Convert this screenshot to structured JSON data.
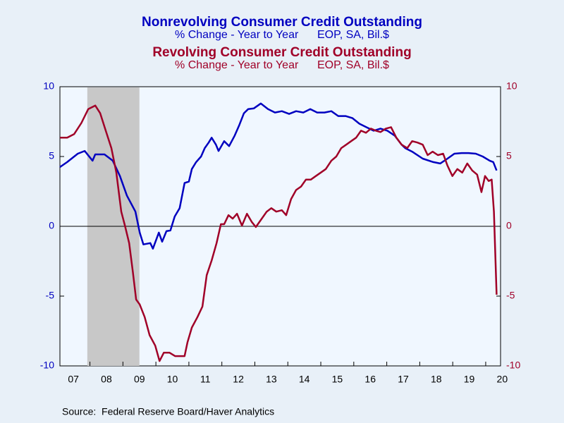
{
  "chart_data": {
    "type": "line",
    "source": "Source:  Federal Reserve Board/Haver Analytics",
    "xlim": [
      2007.09,
      2020.45
    ],
    "xticks": [
      {
        "value": 2007,
        "label": "07"
      },
      {
        "value": 2008,
        "label": "08"
      },
      {
        "value": 2009,
        "label": "09"
      },
      {
        "value": 2010,
        "label": "10"
      },
      {
        "value": 2011,
        "label": "11"
      },
      {
        "value": 2012,
        "label": "12"
      },
      {
        "value": 2013,
        "label": "13"
      },
      {
        "value": 2014,
        "label": "14"
      },
      {
        "value": 2015,
        "label": "15"
      },
      {
        "value": 2016,
        "label": "16"
      },
      {
        "value": 2017,
        "label": "17"
      },
      {
        "value": 2018,
        "label": "18"
      },
      {
        "value": 2019,
        "label": "19"
      },
      {
        "value": 2020,
        "label": "20"
      }
    ],
    "ylim": [
      -10,
      10
    ],
    "yticks": [
      -10,
      -5,
      0,
      5,
      10
    ],
    "y2lim": [
      -10,
      10
    ],
    "y2ticks": [
      -10,
      -5,
      0,
      5,
      10
    ],
    "recession": {
      "start": 2007.92,
      "end": 2009.5,
      "color": "#c8c8c8"
    },
    "series": [
      {
        "name": "Nonrevolving Consumer Credit Outstanding",
        "subtitle": "% Change - Year to Year      EOP, SA, Bil.$",
        "color": "#0000c0",
        "axis": "y",
        "x": [
          2007.09,
          2007.31,
          2007.63,
          2007.84,
          2008.08,
          2008.16,
          2008.44,
          2008.69,
          2008.91,
          2009.12,
          2009.38,
          2009.51,
          2009.62,
          2009.83,
          2009.91,
          2010.09,
          2010.19,
          2010.32,
          2010.44,
          2010.57,
          2010.72,
          2010.87,
          2011.0,
          2011.09,
          2011.22,
          2011.37,
          2011.48,
          2011.6,
          2011.69,
          2011.82,
          2011.9,
          2012.07,
          2012.22,
          2012.39,
          2012.52,
          2012.67,
          2012.8,
          2012.97,
          2013.18,
          2013.4,
          2013.61,
          2013.82,
          2014.04,
          2014.25,
          2014.47,
          2014.68,
          2014.89,
          2015.11,
          2015.32,
          2015.53,
          2015.75,
          2015.96,
          2016.17,
          2016.38,
          2016.6,
          2016.81,
          2017.02,
          2017.24,
          2017.45,
          2017.56,
          2017.77,
          2018.09,
          2018.41,
          2018.62,
          2018.84,
          2019.05,
          2019.27,
          2019.48,
          2019.7,
          2019.91,
          2020.12,
          2020.23,
          2020.33
        ],
        "values": [
          4.24,
          4.6,
          5.2,
          5.4,
          4.7,
          5.15,
          5.15,
          4.7,
          3.6,
          2.2,
          1.05,
          -0.45,
          -1.3,
          -1.2,
          -1.6,
          -0.45,
          -1.1,
          -0.35,
          -0.3,
          0.7,
          1.3,
          3.1,
          3.2,
          4.1,
          4.6,
          5.0,
          5.6,
          6.0,
          6.35,
          5.85,
          5.4,
          6.1,
          5.75,
          6.5,
          7.2,
          8.1,
          8.4,
          8.45,
          8.8,
          8.4,
          8.15,
          8.25,
          8.05,
          8.25,
          8.15,
          8.4,
          8.15,
          8.15,
          8.25,
          7.9,
          7.9,
          7.75,
          7.35,
          7.1,
          6.85,
          7.0,
          6.85,
          6.5,
          5.85,
          5.6,
          5.35,
          4.85,
          4.6,
          4.5,
          4.85,
          5.2,
          5.25,
          5.25,
          5.2,
          5.0,
          4.7,
          4.6,
          4.0
        ]
      },
      {
        "name": "Revolving Consumer Credit Outstanding",
        "subtitle": "% Change - Year to Year      EOP, SA, Bil.$",
        "color": "#a00028",
        "axis": "y2",
        "x": [
          2007.09,
          2007.31,
          2007.52,
          2007.74,
          2007.95,
          2008.16,
          2008.31,
          2008.48,
          2008.65,
          2008.8,
          2008.95,
          2009.06,
          2009.19,
          2009.3,
          2009.4,
          2009.51,
          2009.66,
          2009.81,
          2009.98,
          2010.11,
          2010.24,
          2010.41,
          2010.58,
          2010.75,
          2010.87,
          2010.96,
          2011.09,
          2011.26,
          2011.41,
          2011.54,
          2011.69,
          2011.84,
          2011.97,
          2012.07,
          2012.2,
          2012.33,
          2012.46,
          2012.61,
          2012.76,
          2012.91,
          2013.03,
          2013.18,
          2013.36,
          2013.5,
          2013.65,
          2013.82,
          2013.95,
          2014.1,
          2014.25,
          2014.4,
          2014.55,
          2014.7,
          2014.85,
          2015.0,
          2015.15,
          2015.32,
          2015.47,
          2015.62,
          2015.77,
          2015.92,
          2016.07,
          2016.22,
          2016.37,
          2016.52,
          2016.67,
          2016.81,
          2016.97,
          2017.13,
          2017.29,
          2017.45,
          2017.62,
          2017.77,
          2017.93,
          2018.09,
          2018.24,
          2018.39,
          2018.55,
          2018.71,
          2018.84,
          2018.99,
          2019.14,
          2019.29,
          2019.44,
          2019.59,
          2019.74,
          2019.87,
          2019.98,
          2020.09,
          2020.18,
          2020.25,
          2020.33
        ],
        "values": [
          6.35,
          6.35,
          6.6,
          7.4,
          8.4,
          8.65,
          8.1,
          6.85,
          5.6,
          3.85,
          1.05,
          0.05,
          -1.2,
          -3.25,
          -5.25,
          -5.6,
          -6.5,
          -7.8,
          -8.55,
          -9.65,
          -9.05,
          -9.05,
          -9.3,
          -9.3,
          -9.3,
          -8.3,
          -7.25,
          -6.5,
          -5.75,
          -3.5,
          -2.45,
          -1.2,
          0.15,
          0.15,
          0.8,
          0.55,
          0.9,
          0.05,
          0.9,
          0.3,
          -0.05,
          0.45,
          1.05,
          1.3,
          1.05,
          1.15,
          0.8,
          1.95,
          2.6,
          2.85,
          3.35,
          3.35,
          3.6,
          3.85,
          4.1,
          4.7,
          5.0,
          5.6,
          5.85,
          6.1,
          6.35,
          6.85,
          6.7,
          7.0,
          6.85,
          6.75,
          7.0,
          7.1,
          6.35,
          5.85,
          5.6,
          6.1,
          6.0,
          5.85,
          5.1,
          5.35,
          5.1,
          5.2,
          4.35,
          3.6,
          4.1,
          3.85,
          4.5,
          4.0,
          3.7,
          2.45,
          3.6,
          3.25,
          3.35,
          1.05,
          -4.9
        ]
      }
    ]
  }
}
